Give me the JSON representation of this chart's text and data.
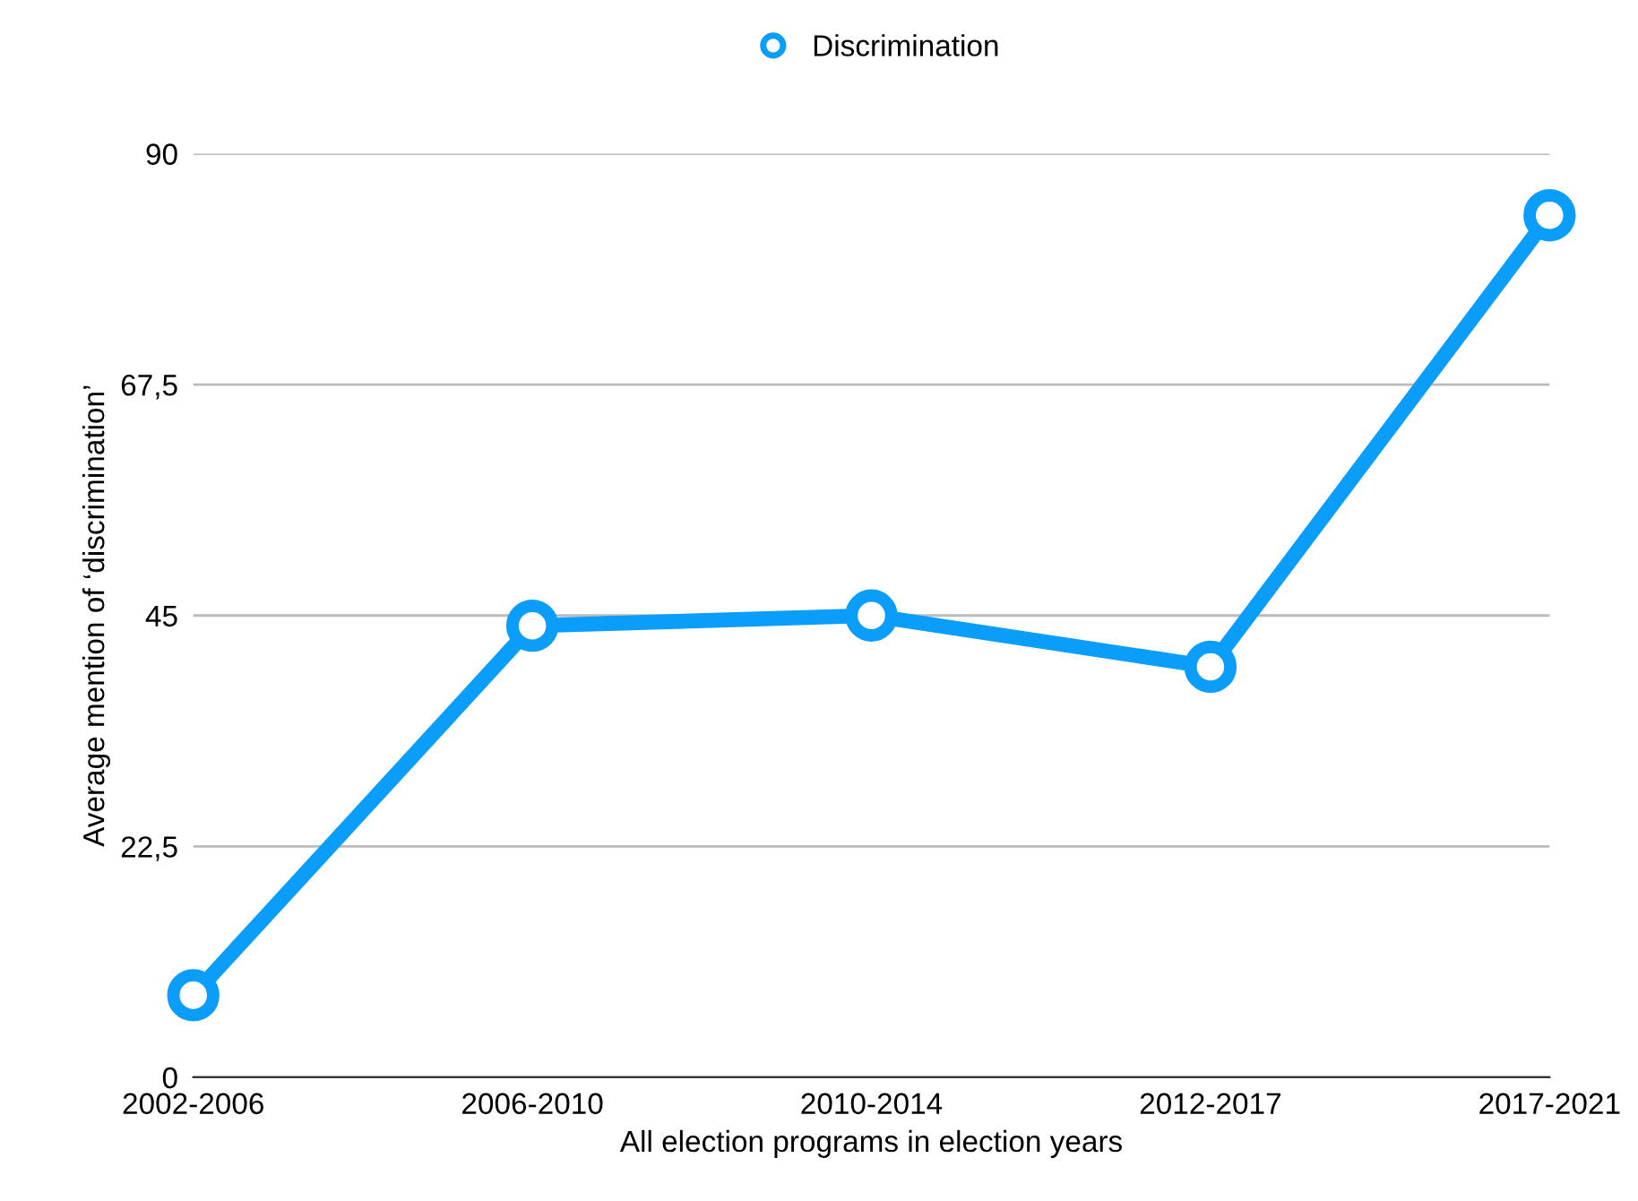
{
  "chart_data": {
    "type": "line",
    "xlabel": "All election programs in election years",
    "ylabel": "Average mention of ‘discrimination’",
    "categories": [
      "2002-2006",
      "2006-2010",
      "2010-2014",
      "2012-2017",
      "2017-2021"
    ],
    "series": [
      {
        "name": "Discrimination",
        "color": "#0a9dfa",
        "values": [
          8,
          44,
          45,
          40,
          84
        ]
      }
    ],
    "ylim": [
      0,
      90
    ],
    "yticks": [
      0,
      {
        "value": 22.5,
        "label": "22,5"
      },
      45,
      {
        "value": 67.5,
        "label": "67,5"
      },
      90
    ],
    "grid": "y",
    "legend": "top",
    "marker": "circle",
    "line_style": "solid"
  }
}
